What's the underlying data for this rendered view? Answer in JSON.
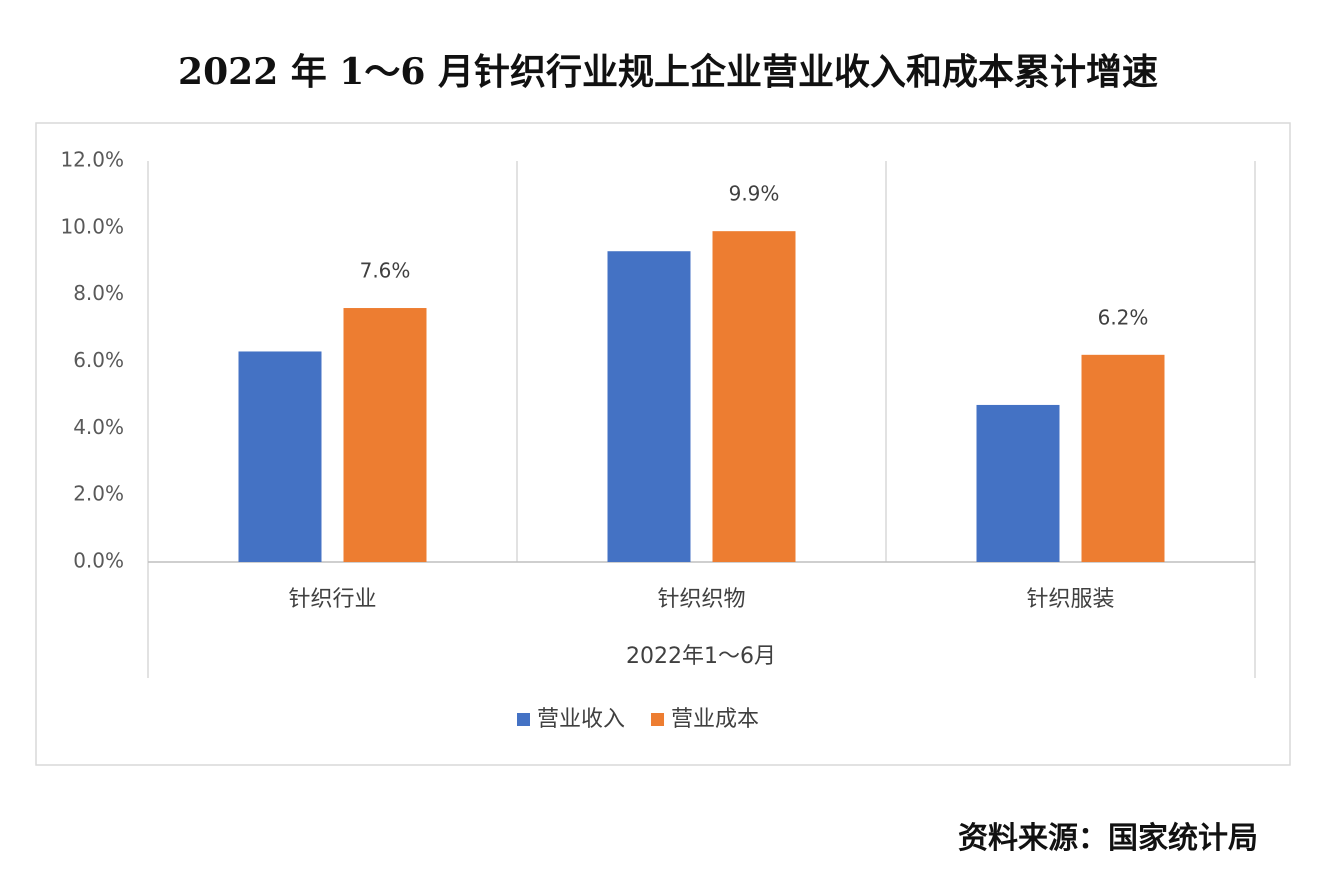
{
  "chart_data": {
    "type": "bar",
    "title": "2022 年 1～6 月针织行业规上企业营业收入和成本累计增速",
    "x_label": "2022年1～6月",
    "source": "资料来源：国家统计局",
    "categories": [
      "针织行业",
      "针织织物",
      "针织服装"
    ],
    "series": [
      {
        "name": "营业收入",
        "color": "#4472c4",
        "values": [
          6.3,
          9.3,
          4.7
        ]
      },
      {
        "name": "营业成本",
        "color": "#ed7d31",
        "values": [
          7.6,
          9.9,
          6.2
        ],
        "value_labels": [
          "7.6%",
          "9.9%",
          "6.2%"
        ]
      }
    ],
    "ylim": [
      0,
      12
    ],
    "yticks": [
      {
        "value": 0,
        "label": "0.0%"
      },
      {
        "value": 2,
        "label": "2.0%"
      },
      {
        "value": 4,
        "label": "4.0%"
      },
      {
        "value": 6,
        "label": "6.0%"
      },
      {
        "value": 8,
        "label": "8.0%"
      },
      {
        "value": 10,
        "label": "10.0%"
      },
      {
        "value": 12,
        "label": "12.0%"
      }
    ],
    "legend": "bottom"
  }
}
